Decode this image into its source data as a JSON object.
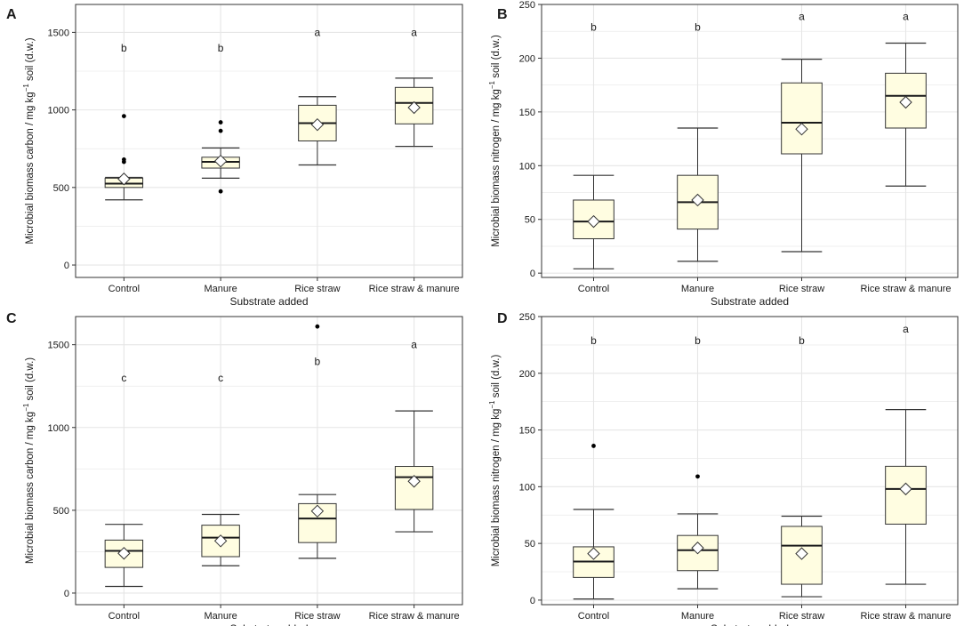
{
  "figure": {
    "background": "#ffffff",
    "box_fill": "#fffde1",
    "grid_color": "#e6e6e6",
    "panel_border": "#333333"
  },
  "chart_data": [
    {
      "panel_label": "A",
      "type": "boxplot",
      "xlabel": "Substrate added",
      "ylabel_parts": [
        "Microbial biomass carbon / mg  kg",
        "−1",
        " soil (d.w.)"
      ],
      "ylim": [
        -80,
        1680
      ],
      "yticks": [
        0,
        500,
        1000,
        1500
      ],
      "categories": [
        "Control",
        "Manure",
        "Rice straw",
        "Rice straw & manure"
      ],
      "boxes": [
        {
          "whisker_low": 420,
          "q1": 500,
          "median": 525,
          "q3": 560,
          "whisker_high": 565,
          "mean": 555,
          "outliers": [
            960,
            680,
            665
          ],
          "letter": "b",
          "letter_y": 1400
        },
        {
          "whisker_low": 560,
          "q1": 625,
          "median": 665,
          "q3": 695,
          "whisker_high": 755,
          "mean": 670,
          "outliers": [
            920,
            865,
            475
          ],
          "letter": "b",
          "letter_y": 1400
        },
        {
          "whisker_low": 645,
          "q1": 800,
          "median": 915,
          "q3": 1030,
          "whisker_high": 1085,
          "mean": 905,
          "outliers": [],
          "letter": "a",
          "letter_y": 1500
        },
        {
          "whisker_low": 765,
          "q1": 910,
          "median": 1045,
          "q3": 1145,
          "whisker_high": 1205,
          "mean": 1015,
          "outliers": [],
          "letter": "a",
          "letter_y": 1500
        }
      ]
    },
    {
      "panel_label": "B",
      "type": "boxplot",
      "xlabel": "Substrate added",
      "ylabel_parts": [
        "Microbial biomass nitrogen / mg  kg",
        "−1",
        " soil (d.w.)"
      ],
      "ylim": [
        -4,
        250
      ],
      "yticks": [
        0,
        50,
        100,
        150,
        200,
        250
      ],
      "categories": [
        "Control",
        "Manure",
        "Rice straw",
        "Rice straw & manure"
      ],
      "boxes": [
        {
          "whisker_low": 4,
          "q1": 32,
          "median": 48,
          "q3": 68,
          "whisker_high": 91,
          "mean": 48,
          "outliers": [],
          "letter": "b",
          "letter_y": 229
        },
        {
          "whisker_low": 11,
          "q1": 41,
          "median": 66,
          "q3": 91,
          "whisker_high": 135,
          "mean": 68,
          "outliers": [],
          "letter": "b",
          "letter_y": 229
        },
        {
          "whisker_low": 20,
          "q1": 111,
          "median": 140,
          "q3": 177,
          "whisker_high": 199,
          "mean": 134,
          "outliers": [],
          "letter": "a",
          "letter_y": 239
        },
        {
          "whisker_low": 81,
          "q1": 135,
          "median": 165,
          "q3": 186,
          "whisker_high": 214,
          "mean": 159,
          "outliers": [],
          "letter": "a",
          "letter_y": 239
        }
      ]
    },
    {
      "panel_label": "C",
      "type": "boxplot",
      "xlabel": "Substrate added",
      "ylabel_parts": [
        "Microbial biomass carbon / mg  kg",
        "−1",
        " soil (d.w.)"
      ],
      "ylim": [
        -70,
        1670
      ],
      "yticks": [
        0,
        500,
        1000,
        1500
      ],
      "categories": [
        "Control",
        "Manure",
        "Rice straw",
        "Rice straw & manure"
      ],
      "boxes": [
        {
          "whisker_low": 40,
          "q1": 155,
          "median": 255,
          "q3": 320,
          "whisker_high": 415,
          "mean": 240,
          "outliers": [],
          "letter": "c",
          "letter_y": 1300
        },
        {
          "whisker_low": 165,
          "q1": 220,
          "median": 335,
          "q3": 410,
          "whisker_high": 475,
          "mean": 315,
          "outliers": [],
          "letter": "c",
          "letter_y": 1300
        },
        {
          "whisker_low": 210,
          "q1": 305,
          "median": 450,
          "q3": 540,
          "whisker_high": 595,
          "mean": 495,
          "outliers": [
            1610
          ],
          "letter": "b",
          "letter_y": 1400
        },
        {
          "whisker_low": 370,
          "q1": 505,
          "median": 700,
          "q3": 765,
          "whisker_high": 1100,
          "mean": 675,
          "outliers": [],
          "letter": "a",
          "letter_y": 1500
        }
      ]
    },
    {
      "panel_label": "D",
      "type": "boxplot",
      "xlabel": "Substrate added",
      "ylabel_parts": [
        "Microbial biomass nitrogen / mg  kg",
        "−1",
        " soil (d.w.)"
      ],
      "ylim": [
        -4,
        250
      ],
      "yticks": [
        0,
        50,
        100,
        150,
        200,
        250
      ],
      "categories": [
        "Control",
        "Manure",
        "Rice straw",
        "Rice straw & manure"
      ],
      "boxes": [
        {
          "whisker_low": 1,
          "q1": 20,
          "median": 34,
          "q3": 47,
          "whisker_high": 80,
          "mean": 41,
          "outliers": [
            136
          ],
          "letter": "b",
          "letter_y": 229
        },
        {
          "whisker_low": 10,
          "q1": 26,
          "median": 44,
          "q3": 57,
          "whisker_high": 76,
          "mean": 46,
          "outliers": [
            109
          ],
          "letter": "b",
          "letter_y": 229
        },
        {
          "whisker_low": 3,
          "q1": 14,
          "median": 48,
          "q3": 65,
          "whisker_high": 74,
          "mean": 41,
          "outliers": [],
          "letter": "b",
          "letter_y": 229
        },
        {
          "whisker_low": 14,
          "q1": 67,
          "median": 98,
          "q3": 118,
          "whisker_high": 168,
          "mean": 98,
          "outliers": [],
          "letter": "a",
          "letter_y": 239
        }
      ]
    }
  ]
}
